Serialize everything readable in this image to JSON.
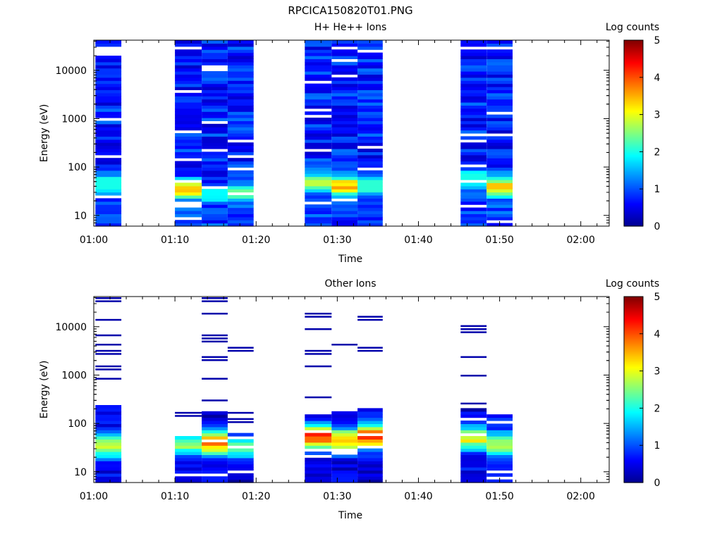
{
  "figure_title": "RPCICA150820T01.PNG",
  "colors": {
    "colormap": [
      "#00008f",
      "#0000ff",
      "#00ffff",
      "#ffff00",
      "#ff0000",
      "#800000"
    ],
    "background": "#ffffff",
    "axis": "#000000"
  },
  "chart_data": [
    {
      "type": "heatmap",
      "title": "H+ He++ Ions",
      "xlabel": "Time",
      "ylabel": "Energy (eV)",
      "colorbar_label": "Log counts",
      "colorbar_ticks": [
        "0",
        "1",
        "2",
        "3",
        "4",
        "5"
      ],
      "x_tick_labels": [
        "01:00",
        "01:10",
        "01:20",
        "01:30",
        "01:40",
        "01:50",
        "02:00"
      ],
      "y_tick_labels": [
        "10",
        "100",
        "1000",
        "10000"
      ],
      "y_scale": "log",
      "xlim_minutes": [
        0,
        63.5
      ],
      "ylim_eV": [
        6,
        42000
      ],
      "clim": [
        0,
        5
      ],
      "time_columns": [
        {
          "start_min": 0.2,
          "end_min": 3.4,
          "profile": "dense",
          "peak_eV": 50,
          "peak_log": 1.6
        },
        {
          "start_min": 10.0,
          "end_min": 13.3,
          "profile": "dense",
          "peak_eV": 35,
          "peak_log": 3.0
        },
        {
          "start_min": 13.3,
          "end_min": 16.5,
          "profile": "dense",
          "peak_eV": 30,
          "peak_log": 1.5
        },
        {
          "start_min": 16.5,
          "end_min": 19.7,
          "profile": "dense",
          "peak_eV": 30,
          "peak_log": 2.0
        },
        {
          "start_min": 26.0,
          "end_min": 29.3,
          "profile": "dense",
          "peak_eV": 50,
          "peak_log": 2.4
        },
        {
          "start_min": 29.3,
          "end_min": 32.5,
          "profile": "dense",
          "peak_eV": 40,
          "peak_log": 3.2
        },
        {
          "start_min": 32.5,
          "end_min": 35.6,
          "profile": "dense",
          "peak_eV": 40,
          "peak_log": 1.7
        },
        {
          "start_min": 45.2,
          "end_min": 48.4,
          "profile": "dense",
          "peak_eV": 60,
          "peak_log": 1.6
        },
        {
          "start_min": 48.4,
          "end_min": 51.6,
          "profile": "dense",
          "peak_eV": 40,
          "peak_log": 3.0
        }
      ]
    },
    {
      "type": "heatmap",
      "title": "Other Ions",
      "xlabel": "Time",
      "ylabel": "Energy (eV)",
      "colorbar_label": "Log counts",
      "colorbar_ticks": [
        "0",
        "1",
        "2",
        "3",
        "4",
        "5"
      ],
      "x_tick_labels": [
        "01:00",
        "01:10",
        "01:20",
        "01:30",
        "01:40",
        "01:50",
        "02:00"
      ],
      "y_tick_labels": [
        "10",
        "100",
        "1000",
        "10000"
      ],
      "y_scale": "log",
      "xlim_minutes": [
        0,
        63.5
      ],
      "ylim_eV": [
        6,
        42000
      ],
      "clim": [
        0,
        5
      ],
      "time_columns": [
        {
          "start_min": 0.2,
          "end_min": 3.4,
          "profile": "sparse",
          "peak_eV": 35,
          "peak_log": 2.6,
          "top_eV": 250,
          "lines_eV": [
            36000,
            14000,
            7000,
            4000,
            3000,
            2800,
            1600,
            1300,
            800
          ]
        },
        {
          "start_min": 10.0,
          "end_min": 13.3,
          "profile": "sparse",
          "peak_eV": 38,
          "peak_log": 2.3,
          "top_eV": 55,
          "lines_eV": [
            170,
            135
          ]
        },
        {
          "start_min": 13.3,
          "end_min": 16.5,
          "profile": "sparse",
          "peak_eV": 40,
          "peak_log": 3.3,
          "top_eV": 170,
          "lines_eV": [
            36000,
            19000,
            7000,
            6000,
            5000,
            2200,
            800,
            320
          ]
        },
        {
          "start_min": 16.5,
          "end_min": 19.7,
          "profile": "sparse",
          "peak_eV": 32,
          "peak_log": 2.0,
          "top_eV": 60,
          "lines_eV": [
            3400,
            170,
            130,
            110
          ]
        },
        {
          "start_min": 26.0,
          "end_min": 29.3,
          "profile": "sparse",
          "peak_eV": 55,
          "peak_log": 3.8,
          "top_eV": 190,
          "lines_eV": [
            19000,
            17000,
            8800,
            3300,
            3000,
            2800,
            1500,
            350
          ]
        },
        {
          "start_min": 29.3,
          "end_min": 32.5,
          "profile": "sparse",
          "peak_eV": 45,
          "peak_log": 3.2,
          "top_eV": 190,
          "lines_eV": [
            4000
          ]
        },
        {
          "start_min": 32.5,
          "end_min": 35.6,
          "profile": "sparse",
          "peak_eV": 55,
          "peak_log": 3.9,
          "top_eV": 200,
          "lines_eV": [
            15000,
            3400
          ]
        },
        {
          "start_min": 45.2,
          "end_min": 48.4,
          "profile": "sparse",
          "peak_eV": 50,
          "peak_log": 2.8,
          "top_eV": 200,
          "lines_eV": [
            11000,
            9000,
            7600,
            2500,
            950,
            270
          ]
        },
        {
          "start_min": 48.4,
          "end_min": 51.6,
          "profile": "sparse",
          "peak_eV": 38,
          "peak_log": 2.4,
          "top_eV": 160,
          "lines_eV": [
            18,
            16
          ]
        }
      ]
    }
  ]
}
